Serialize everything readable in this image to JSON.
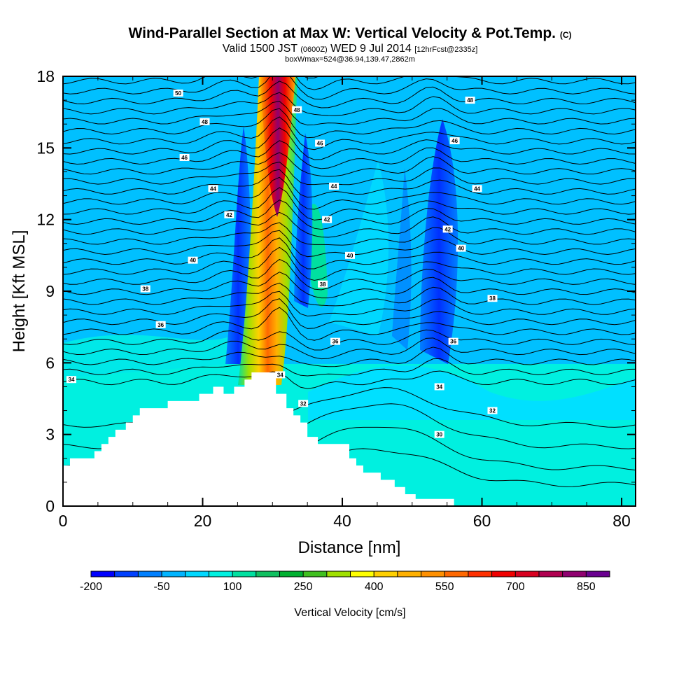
{
  "header": {
    "title": "Wind-Parallel Section at Max W: Vertical Velocity & Pot.Temp.",
    "copyright": "(C)",
    "valid_prefix": "Valid 1500 JST",
    "valid_utc": "(0600Z)",
    "valid_date": "WED 9 Jul 2014",
    "forecast_info": "[12hrFcst@2335z]",
    "box_info": "boxWmax=524@36.94,139.47,2862m"
  },
  "chart_data": {
    "type": "heatmap",
    "xlabel": "Distance [nm]",
    "ylabel": "Height [Kft MSL]",
    "xlim": [
      0,
      82
    ],
    "ylim": [
      0,
      18
    ],
    "x_ticks": [
      "0",
      "20",
      "40",
      "60",
      "80"
    ],
    "y_ticks": [
      "0",
      "3",
      "6",
      "9",
      "12",
      "15",
      "18"
    ],
    "colorbar": {
      "label": "Vertical Velocity [cm/s]",
      "tick_labels": [
        "-200",
        "-50",
        "100",
        "250",
        "400",
        "550",
        "700",
        "850"
      ],
      "colors": [
        "#0000ff",
        "#0040ff",
        "#0080ff",
        "#00b4ff",
        "#00d8ff",
        "#00f0e0",
        "#00e0a0",
        "#10c060",
        "#00b030",
        "#40c020",
        "#a0e000",
        "#ffff00",
        "#ffd000",
        "#ffb000",
        "#ff9000",
        "#ff6800",
        "#ff3000",
        "#f00000",
        "#d80020",
        "#b00050",
        "#900070",
        "#6a0090"
      ]
    },
    "terrain_profile": {
      "distance_nm": [
        0,
        1,
        1,
        4.5,
        4.5,
        5.5,
        5.5,
        6.5,
        6.5,
        7.5,
        7.5,
        9,
        9,
        10,
        10,
        11,
        11,
        15,
        15,
        19.5,
        19.5,
        21.5,
        21.5,
        23,
        23,
        24.5,
        24.5,
        26,
        26,
        27,
        27,
        30.5,
        30.5,
        32,
        32,
        33,
        33,
        34,
        34,
        35,
        35,
        36.5,
        36.5,
        41,
        41,
        42,
        42,
        43,
        43,
        45.5,
        45.5,
        47.5,
        47.5,
        49,
        49,
        50.5,
        50.5,
        51.5,
        51.5,
        56,
        56,
        82
      ],
      "height_kft": [
        1.7,
        1.7,
        2.0,
        2.0,
        2.3,
        2.3,
        2.6,
        2.6,
        2.9,
        2.9,
        3.2,
        3.2,
        3.5,
        3.5,
        3.8,
        3.8,
        4.1,
        4.1,
        4.4,
        4.4,
        4.7,
        4.7,
        5.0,
        5.0,
        4.7,
        4.7,
        5.0,
        5.0,
        5.3,
        5.3,
        5.6,
        5.6,
        4.7,
        4.7,
        4.1,
        4.1,
        3.8,
        3.8,
        3.5,
        3.5,
        2.9,
        2.9,
        2.6,
        2.6,
        2.0,
        2.0,
        1.7,
        1.7,
        1.4,
        1.4,
        1.1,
        1.1,
        0.8,
        0.8,
        0.5,
        0.5,
        0.3,
        0.3,
        0.3,
        0.3,
        0,
        0
      ]
    },
    "series": [
      {
        "name": "updraft core",
        "x_center_nm": 31.0,
        "peak_cm_s": 850
      },
      {
        "name": "downdraft",
        "x_center_nm": 26.0,
        "peak_cm_s": -200
      },
      {
        "name": "downdraft",
        "x_center_nm": 54.0,
        "peak_cm_s": -200
      }
    ],
    "isentrope_levels_c": [
      30,
      32,
      34,
      36,
      38,
      40,
      42,
      44,
      46,
      48,
      50
    ],
    "contour_labels": [
      {
        "text": "50",
        "x": 16.5,
        "y": 17.3
      },
      {
        "text": "48",
        "x": 20.3,
        "y": 16.1
      },
      {
        "text": "46",
        "x": 17.4,
        "y": 14.6
      },
      {
        "text": "44",
        "x": 21.5,
        "y": 13.3
      },
      {
        "text": "42",
        "x": 23.8,
        "y": 12.2
      },
      {
        "text": "40",
        "x": 18.6,
        "y": 10.3
      },
      {
        "text": "38",
        "x": 11.8,
        "y": 9.1
      },
      {
        "text": "36",
        "x": 14.0,
        "y": 7.6
      },
      {
        "text": "34",
        "x": 1.2,
        "y": 5.3
      },
      {
        "text": "48",
        "x": 33.5,
        "y": 16.6
      },
      {
        "text": "46",
        "x": 36.8,
        "y": 15.2
      },
      {
        "text": "44",
        "x": 38.8,
        "y": 13.4
      },
      {
        "text": "42",
        "x": 37.8,
        "y": 12.0
      },
      {
        "text": "40",
        "x": 41.1,
        "y": 10.5
      },
      {
        "text": "38",
        "x": 37.2,
        "y": 9.3
      },
      {
        "text": "36",
        "x": 39.0,
        "y": 6.9
      },
      {
        "text": "34",
        "x": 31.1,
        "y": 5.5
      },
      {
        "text": "32",
        "x": 34.4,
        "y": 4.3
      },
      {
        "text": "48",
        "x": 58.3,
        "y": 17.0
      },
      {
        "text": "46",
        "x": 56.1,
        "y": 15.3
      },
      {
        "text": "44",
        "x": 59.3,
        "y": 13.3
      },
      {
        "text": "42",
        "x": 55.1,
        "y": 11.6
      },
      {
        "text": "40",
        "x": 57.0,
        "y": 10.8
      },
      {
        "text": "38",
        "x": 61.5,
        "y": 8.7
      },
      {
        "text": "36",
        "x": 55.9,
        "y": 6.9
      },
      {
        "text": "34",
        "x": 53.9,
        "y": 5.0
      },
      {
        "text": "32",
        "x": 61.5,
        "y": 4.0
      },
      {
        "text": "30",
        "x": 53.9,
        "y": 3.0
      }
    ]
  }
}
